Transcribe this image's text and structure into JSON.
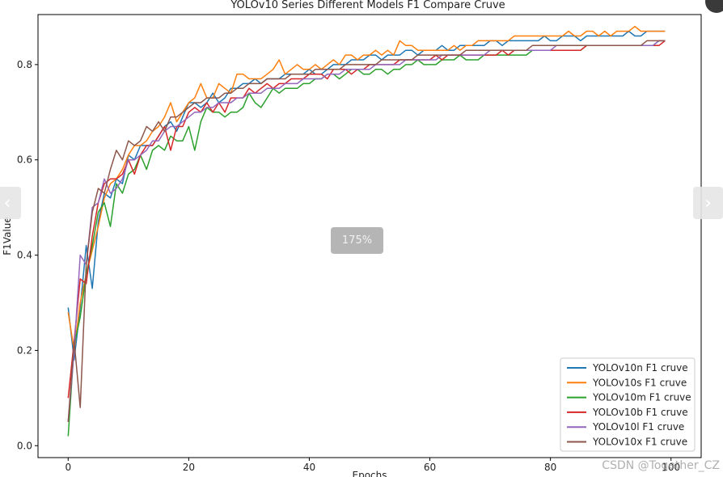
{
  "viewer": {
    "prev_arrow": "‹",
    "next_arrow": "›",
    "zoom_level": "175%",
    "watermark": "CSDN @Together_CZ"
  },
  "chart_data": {
    "type": "line",
    "title": "YOLOv10 Series Different Models F1 Compare Cruve",
    "xlabel": "Epochs",
    "ylabel": "F1Value",
    "xlim": [
      -5,
      105
    ],
    "ylim": [
      -0.025,
      0.905
    ],
    "x_ticks": [
      0,
      20,
      40,
      60,
      80,
      100
    ],
    "y_ticks": [
      0.0,
      0.2,
      0.4,
      0.6,
      0.8
    ],
    "grid": false,
    "legend_position": "bottom-right",
    "series": [
      {
        "name": "YOLOv10n F1 cruve",
        "color": "#1f77b4",
        "values": [
          0.29,
          0.18,
          0.29,
          0.42,
          0.33,
          0.47,
          0.53,
          0.52,
          0.56,
          0.55,
          0.61,
          0.6,
          0.63,
          0.63,
          0.63,
          0.65,
          0.67,
          0.68,
          0.66,
          0.69,
          0.72,
          0.72,
          0.71,
          0.72,
          0.74,
          0.72,
          0.73,
          0.75,
          0.75,
          0.76,
          0.76,
          0.77,
          0.76,
          0.77,
          0.77,
          0.77,
          0.78,
          0.78,
          0.78,
          0.78,
          0.79,
          0.78,
          0.78,
          0.79,
          0.8,
          0.8,
          0.8,
          0.81,
          0.81,
          0.81,
          0.82,
          0.82,
          0.81,
          0.82,
          0.82,
          0.82,
          0.83,
          0.83,
          0.82,
          0.83,
          0.83,
          0.83,
          0.84,
          0.83,
          0.83,
          0.84,
          0.84,
          0.84,
          0.84,
          0.84,
          0.85,
          0.85,
          0.84,
          0.85,
          0.85,
          0.85,
          0.85,
          0.85,
          0.85,
          0.86,
          0.85,
          0.85,
          0.86,
          0.86,
          0.86,
          0.85,
          0.86,
          0.86,
          0.86,
          0.86,
          0.86,
          0.86,
          0.86,
          0.87,
          0.86,
          0.86,
          0.87,
          0.87,
          0.87,
          0.87
        ]
      },
      {
        "name": "YOLOv10s F1 cruve",
        "color": "#ff7f0e",
        "values": [
          0.28,
          0.2,
          0.3,
          0.36,
          0.41,
          0.46,
          0.52,
          0.55,
          0.56,
          0.58,
          0.61,
          0.63,
          0.63,
          0.64,
          0.66,
          0.67,
          0.69,
          0.72,
          0.68,
          0.7,
          0.72,
          0.73,
          0.76,
          0.73,
          0.73,
          0.76,
          0.75,
          0.74,
          0.78,
          0.78,
          0.77,
          0.77,
          0.77,
          0.78,
          0.79,
          0.81,
          0.78,
          0.79,
          0.8,
          0.79,
          0.79,
          0.8,
          0.79,
          0.8,
          0.81,
          0.8,
          0.82,
          0.82,
          0.81,
          0.82,
          0.82,
          0.83,
          0.82,
          0.83,
          0.82,
          0.85,
          0.84,
          0.84,
          0.83,
          0.83,
          0.83,
          0.83,
          0.83,
          0.83,
          0.84,
          0.83,
          0.84,
          0.84,
          0.85,
          0.85,
          0.85,
          0.85,
          0.85,
          0.85,
          0.86,
          0.86,
          0.86,
          0.86,
          0.86,
          0.86,
          0.86,
          0.86,
          0.86,
          0.87,
          0.86,
          0.86,
          0.87,
          0.87,
          0.86,
          0.87,
          0.86,
          0.87,
          0.87,
          0.87,
          0.88,
          0.87,
          0.87,
          0.87,
          0.87,
          0.87
        ]
      },
      {
        "name": "YOLOv10m F1 cruve",
        "color": "#2ca02c",
        "values": [
          0.02,
          0.21,
          0.27,
          0.36,
          0.42,
          0.49,
          0.51,
          0.46,
          0.55,
          0.53,
          0.57,
          0.58,
          0.61,
          0.58,
          0.62,
          0.63,
          0.62,
          0.65,
          0.64,
          0.64,
          0.67,
          0.62,
          0.68,
          0.71,
          0.7,
          0.7,
          0.69,
          0.7,
          0.7,
          0.71,
          0.74,
          0.72,
          0.71,
          0.73,
          0.75,
          0.74,
          0.75,
          0.75,
          0.75,
          0.76,
          0.76,
          0.77,
          0.77,
          0.78,
          0.78,
          0.77,
          0.78,
          0.79,
          0.79,
          0.78,
          0.78,
          0.79,
          0.79,
          0.78,
          0.79,
          0.79,
          0.8,
          0.8,
          0.81,
          0.8,
          0.8,
          0.8,
          0.81,
          0.81,
          0.81,
          0.82,
          0.81,
          0.81,
          0.81,
          0.82,
          0.82,
          0.82,
          0.82,
          0.82,
          0.82,
          0.82,
          0.82,
          0.83,
          0.83,
          0.83,
          0.83,
          0.83,
          0.83,
          0.83,
          0.83,
          0.83,
          0.84,
          0.84,
          0.84,
          0.84,
          0.84,
          0.84,
          0.84,
          0.84,
          0.84,
          0.84,
          0.84,
          0.84,
          0.85,
          0.85
        ]
      },
      {
        "name": "YOLOv10b F1 cruve",
        "color": "#d62728",
        "values": [
          0.1,
          0.22,
          0.35,
          0.34,
          0.44,
          0.51,
          0.55,
          0.56,
          0.56,
          0.57,
          0.6,
          0.57,
          0.61,
          0.63,
          0.63,
          0.65,
          0.67,
          0.62,
          0.67,
          0.67,
          0.7,
          0.71,
          0.7,
          0.72,
          0.7,
          0.72,
          0.7,
          0.73,
          0.73,
          0.73,
          0.75,
          0.74,
          0.75,
          0.76,
          0.75,
          0.76,
          0.76,
          0.77,
          0.77,
          0.77,
          0.78,
          0.78,
          0.78,
          0.77,
          0.79,
          0.79,
          0.79,
          0.78,
          0.79,
          0.79,
          0.8,
          0.8,
          0.8,
          0.8,
          0.8,
          0.81,
          0.81,
          0.81,
          0.81,
          0.81,
          0.81,
          0.82,
          0.81,
          0.82,
          0.82,
          0.82,
          0.82,
          0.82,
          0.82,
          0.82,
          0.82,
          0.82,
          0.83,
          0.82,
          0.83,
          0.83,
          0.83,
          0.83,
          0.83,
          0.83,
          0.83,
          0.83,
          0.83,
          0.83,
          0.83,
          0.83,
          0.84,
          0.84,
          0.84,
          0.84,
          0.84,
          0.84,
          0.84,
          0.84,
          0.84,
          0.84,
          0.84,
          0.84,
          0.84,
          0.85
        ]
      },
      {
        "name": "YOLOv10l F1 cruve",
        "color": "#9467bd",
        "values": [
          0.05,
          0.2,
          0.4,
          0.38,
          0.5,
          0.51,
          0.56,
          0.53,
          0.54,
          0.56,
          0.6,
          0.6,
          0.61,
          0.62,
          0.64,
          0.64,
          0.66,
          0.67,
          0.67,
          0.68,
          0.69,
          0.7,
          0.7,
          0.71,
          0.71,
          0.72,
          0.72,
          0.72,
          0.73,
          0.73,
          0.74,
          0.74,
          0.74,
          0.75,
          0.75,
          0.75,
          0.76,
          0.76,
          0.76,
          0.77,
          0.77,
          0.77,
          0.77,
          0.78,
          0.78,
          0.78,
          0.79,
          0.79,
          0.79,
          0.79,
          0.79,
          0.8,
          0.8,
          0.8,
          0.8,
          0.8,
          0.81,
          0.81,
          0.81,
          0.81,
          0.81,
          0.81,
          0.82,
          0.82,
          0.82,
          0.82,
          0.82,
          0.82,
          0.82,
          0.82,
          0.83,
          0.83,
          0.83,
          0.83,
          0.83,
          0.83,
          0.83,
          0.83,
          0.83,
          0.83,
          0.83,
          0.84,
          0.84,
          0.84,
          0.84,
          0.84,
          0.84,
          0.84,
          0.84,
          0.84,
          0.84,
          0.84,
          0.84,
          0.84,
          0.84,
          0.84,
          0.84,
          0.84,
          0.85,
          0.85
        ]
      },
      {
        "name": "YOLOv10x F1 cruve",
        "color": "#8c564b",
        "values": [
          0.05,
          0.22,
          0.08,
          0.38,
          0.49,
          0.54,
          0.53,
          0.58,
          0.62,
          0.6,
          0.64,
          0.63,
          0.64,
          0.67,
          0.66,
          0.68,
          0.66,
          0.69,
          0.69,
          0.7,
          0.71,
          0.72,
          0.72,
          0.73,
          0.73,
          0.73,
          0.74,
          0.74,
          0.75,
          0.75,
          0.76,
          0.76,
          0.76,
          0.77,
          0.77,
          0.77,
          0.77,
          0.78,
          0.78,
          0.78,
          0.78,
          0.79,
          0.79,
          0.79,
          0.79,
          0.79,
          0.8,
          0.8,
          0.8,
          0.8,
          0.8,
          0.8,
          0.81,
          0.81,
          0.81,
          0.81,
          0.81,
          0.81,
          0.82,
          0.82,
          0.82,
          0.82,
          0.82,
          0.82,
          0.82,
          0.82,
          0.83,
          0.83,
          0.83,
          0.83,
          0.83,
          0.83,
          0.83,
          0.83,
          0.83,
          0.83,
          0.83,
          0.84,
          0.84,
          0.84,
          0.84,
          0.84,
          0.84,
          0.84,
          0.84,
          0.84,
          0.84,
          0.84,
          0.84,
          0.84,
          0.84,
          0.84,
          0.84,
          0.84,
          0.84,
          0.84,
          0.85,
          0.85,
          0.85,
          0.85
        ]
      }
    ]
  }
}
